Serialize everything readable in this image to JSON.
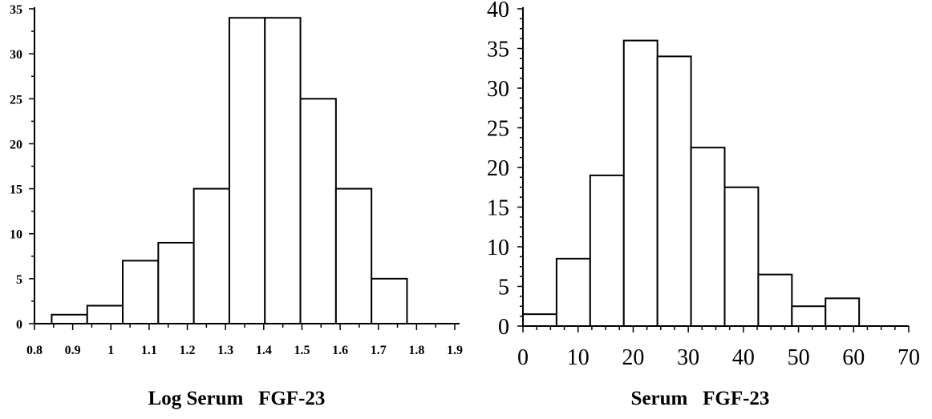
{
  "chart_data": [
    {
      "type": "bar",
      "title": "",
      "xlabel": "Log Serum   FGF-23",
      "ylabel": "",
      "bin_width": 0.093,
      "bins": [
        {
          "x_start": 0.845,
          "value": 1
        },
        {
          "x_start": 0.938,
          "value": 2
        },
        {
          "x_start": 1.031,
          "value": 7
        },
        {
          "x_start": 1.124,
          "value": 9
        },
        {
          "x_start": 1.217,
          "value": 15
        },
        {
          "x_start": 1.31,
          "value": 34
        },
        {
          "x_start": 1.403,
          "value": 34
        },
        {
          "x_start": 1.496,
          "value": 25
        },
        {
          "x_start": 1.589,
          "value": 15
        },
        {
          "x_start": 1.682,
          "value": 5
        }
      ],
      "xlim": [
        0.8,
        1.9
      ],
      "ylim": [
        0,
        35
      ],
      "x_ticks": [
        "0.8",
        "0.9",
        "1",
        "1.1",
        "1.2",
        "1.3",
        "1.4",
        "1.5",
        "1.6",
        "1.7",
        "1.8",
        "1.9"
      ],
      "y_ticks": [
        "0",
        "5",
        "10",
        "15",
        "20",
        "25",
        "30",
        "35"
      ],
      "grid": false
    },
    {
      "type": "bar",
      "title": "",
      "xlabel": "Serum   FGF-23",
      "ylabel": "",
      "bin_width": 6.1,
      "bins": [
        {
          "x_start": 0,
          "value": 1.5
        },
        {
          "x_start": 6.1,
          "value": 8.5
        },
        {
          "x_start": 12.2,
          "value": 19
        },
        {
          "x_start": 18.3,
          "value": 36
        },
        {
          "x_start": 24.4,
          "value": 34
        },
        {
          "x_start": 30.5,
          "value": 22.5
        },
        {
          "x_start": 36.6,
          "value": 17.5
        },
        {
          "x_start": 42.7,
          "value": 6.5
        },
        {
          "x_start": 48.8,
          "value": 2.5
        },
        {
          "x_start": 54.9,
          "value": 3.5
        }
      ],
      "xlim": [
        0,
        70
      ],
      "ylim": [
        0,
        40
      ],
      "x_ticks": [
        "0",
        "10",
        "20",
        "30",
        "40",
        "50",
        "60",
        "70"
      ],
      "y_ticks": [
        "0",
        "5",
        "10",
        "15",
        "20",
        "25",
        "30",
        "35",
        "40"
      ],
      "grid": false
    }
  ]
}
